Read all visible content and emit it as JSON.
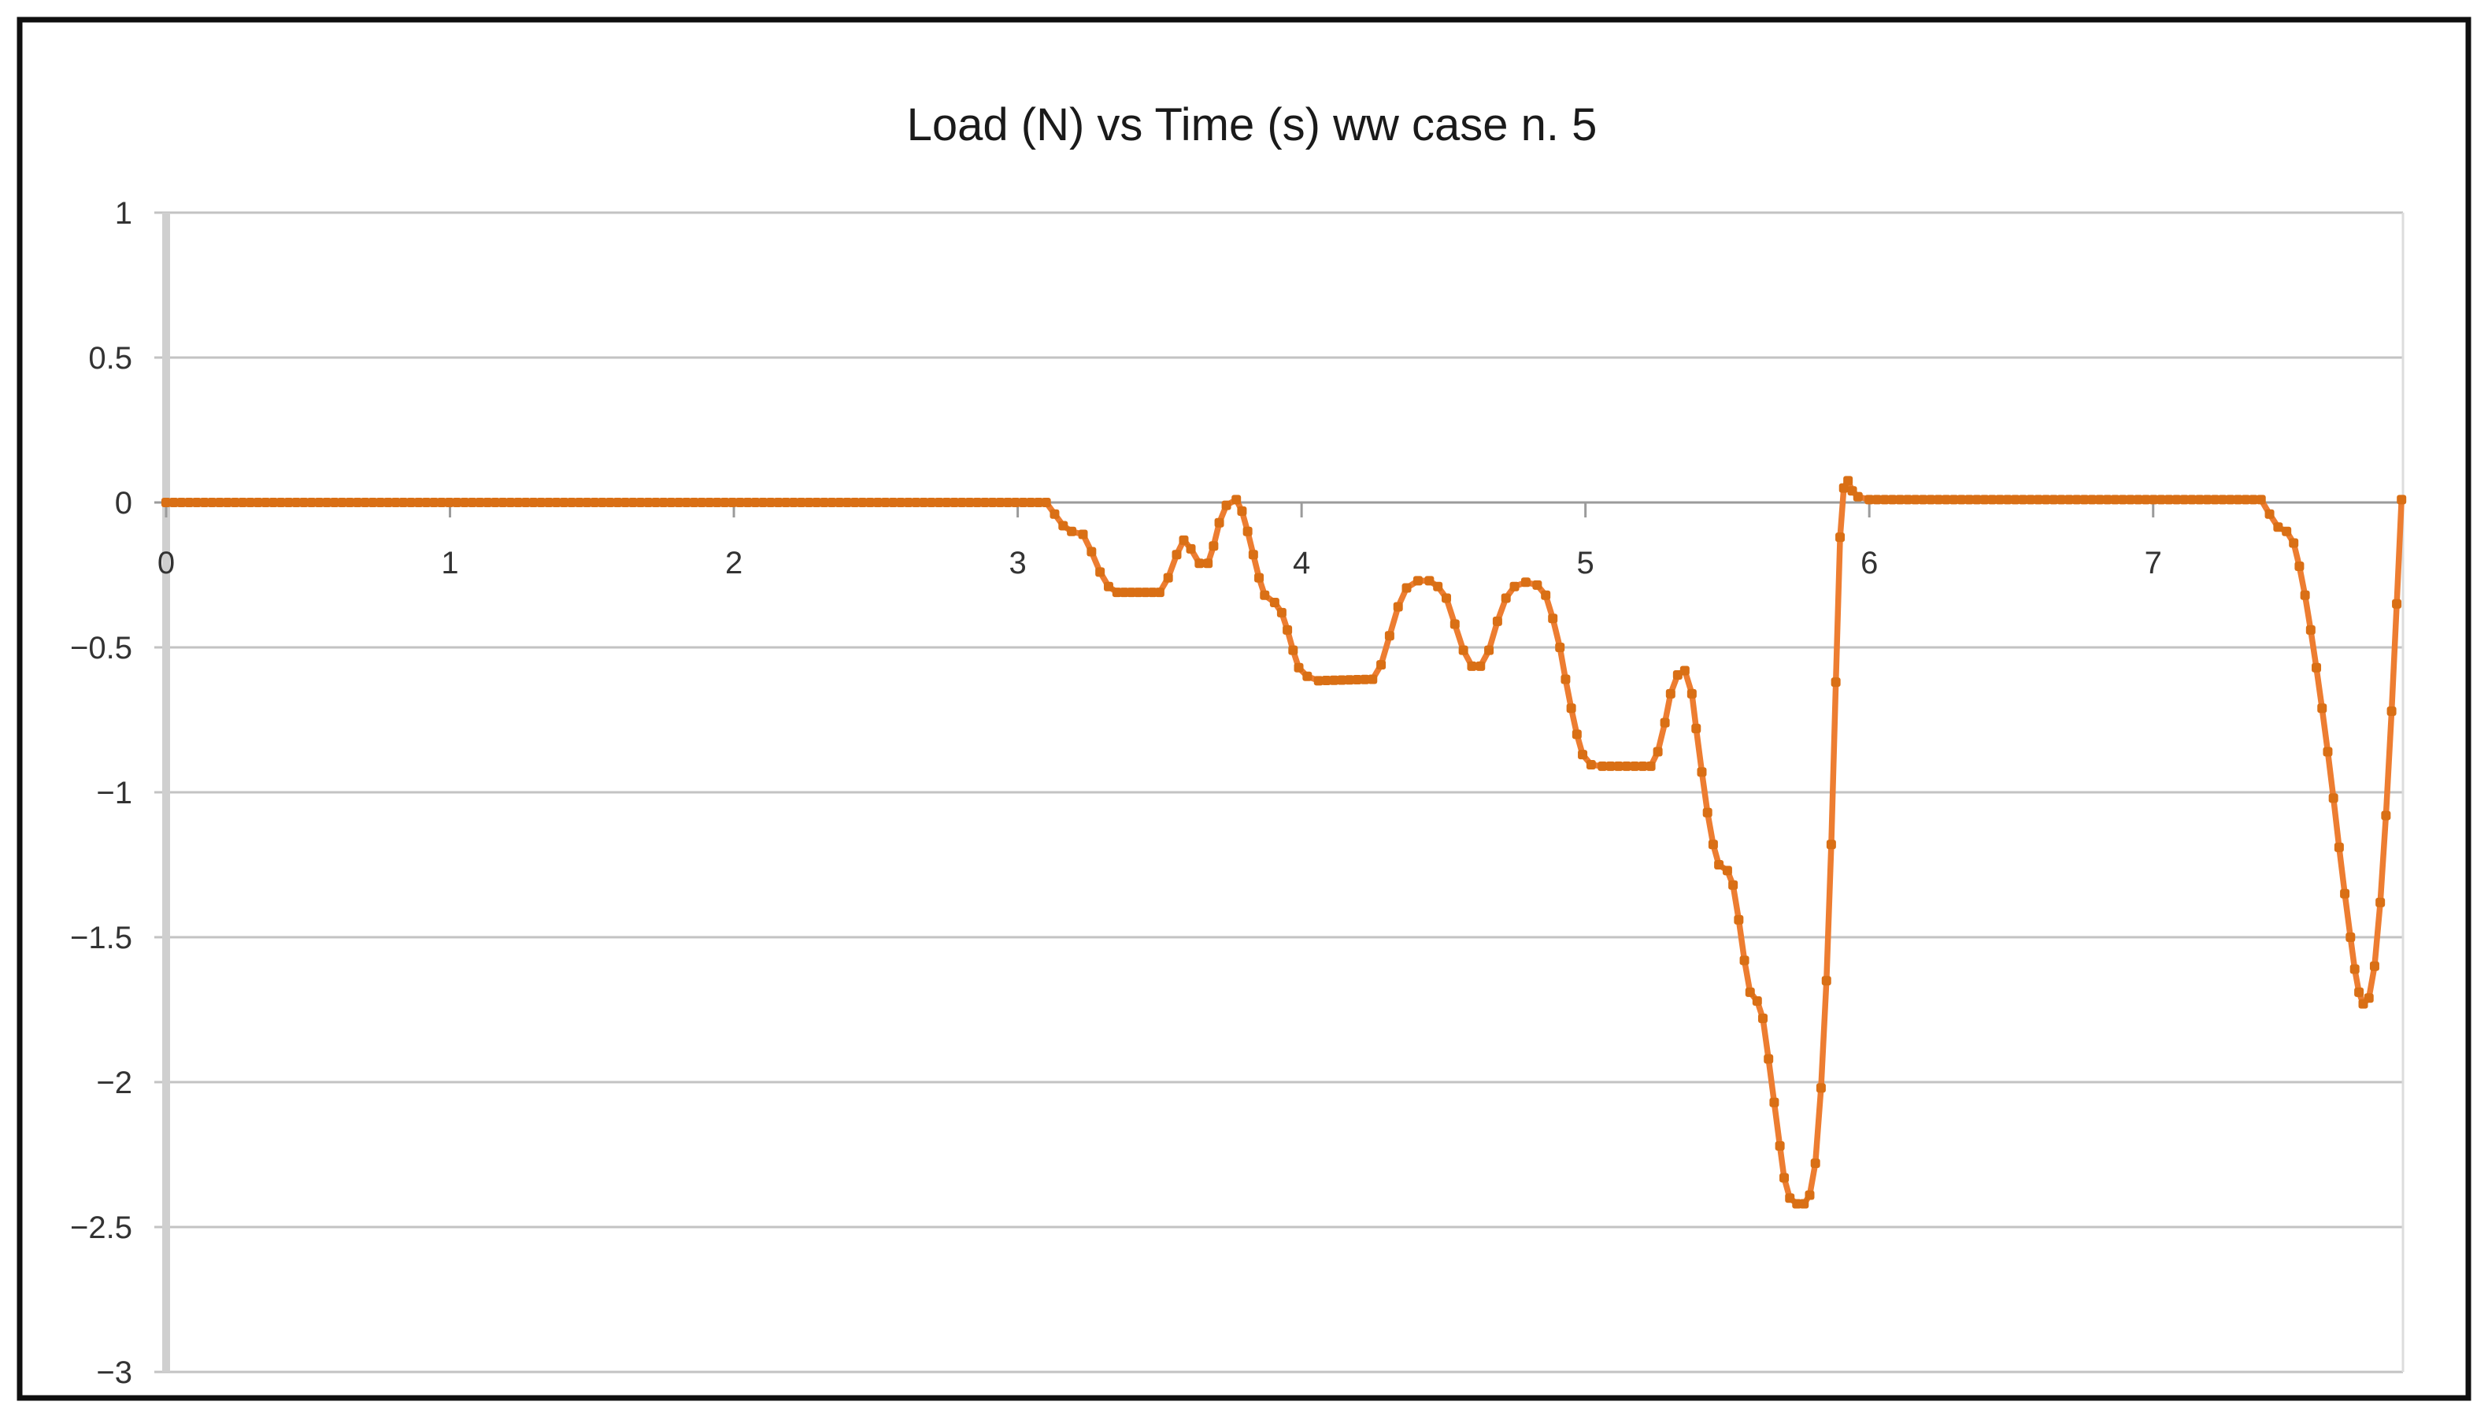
{
  "figure": {
    "title": "Load (N) vs Time (s) ww case n. 5"
  },
  "colors": {
    "line": "#ED7D31",
    "marker": "#D96F15",
    "gridline": "#c3c3c3",
    "zero_line": "#9b9b9b",
    "axis_band": "#cfcfcf",
    "plot_right_edge": "#dcdcdc",
    "tick_text": "#333333",
    "title_text": "#1a1a1a",
    "frame": "#0f0f0f"
  },
  "chart_data": {
    "type": "line",
    "title": "Load (N) vs Time (s) ww case n. 5",
    "xlabel": "",
    "ylabel": "",
    "legend": "none",
    "grid": "horizontal",
    "x_axis": {
      "min": 0,
      "max": 7.88,
      "tick_values": [
        0,
        1,
        2,
        3,
        4,
        5,
        6,
        7
      ],
      "tick_labels": [
        "0",
        "1",
        "2",
        "3",
        "4",
        "5",
        "6",
        "7"
      ]
    },
    "y_axis": {
      "min": -3,
      "max": 1,
      "tick_values": [
        1,
        0.5,
        0,
        -0.5,
        -1,
        -1.5,
        -2,
        -2.5,
        -3
      ],
      "tick_labels": [
        "1",
        "0.5",
        "0",
        "−0.5",
        "−1",
        "−1.5",
        "−2",
        "−2.5",
        "−3"
      ]
    },
    "series": [
      {
        "name": "Load (N)",
        "color": "#ED7D31",
        "marker_color": "#D96F15",
        "marker": "square",
        "marker_interval": 0.027,
        "keypoints": [
          [
            0.0,
            0.0
          ],
          [
            3.1,
            0.0
          ],
          [
            3.13,
            -0.04
          ],
          [
            3.16,
            -0.08
          ],
          [
            3.19,
            -0.1
          ],
          [
            3.23,
            -0.11
          ],
          [
            3.26,
            -0.17
          ],
          [
            3.29,
            -0.24
          ],
          [
            3.32,
            -0.29
          ],
          [
            3.35,
            -0.31
          ],
          [
            3.5,
            -0.31
          ],
          [
            3.53,
            -0.26
          ],
          [
            3.56,
            -0.18
          ],
          [
            3.585,
            -0.13
          ],
          [
            3.61,
            -0.16
          ],
          [
            3.64,
            -0.21
          ],
          [
            3.67,
            -0.21
          ],
          [
            3.69,
            -0.15
          ],
          [
            3.71,
            -0.07
          ],
          [
            3.735,
            -0.01
          ],
          [
            3.77,
            0.01
          ],
          [
            3.79,
            -0.03
          ],
          [
            3.81,
            -0.1
          ],
          [
            3.83,
            -0.18
          ],
          [
            3.85,
            -0.26
          ],
          [
            3.87,
            -0.32
          ],
          [
            3.905,
            -0.345
          ],
          [
            3.93,
            -0.38
          ],
          [
            3.95,
            -0.44
          ],
          [
            3.97,
            -0.51
          ],
          [
            3.99,
            -0.57
          ],
          [
            4.02,
            -0.6
          ],
          [
            4.06,
            -0.615
          ],
          [
            4.25,
            -0.61
          ],
          [
            4.28,
            -0.56
          ],
          [
            4.31,
            -0.46
          ],
          [
            4.34,
            -0.36
          ],
          [
            4.37,
            -0.295
          ],
          [
            4.41,
            -0.27
          ],
          [
            4.45,
            -0.27
          ],
          [
            4.48,
            -0.29
          ],
          [
            4.51,
            -0.33
          ],
          [
            4.54,
            -0.42
          ],
          [
            4.57,
            -0.51
          ],
          [
            4.6,
            -0.565
          ],
          [
            4.63,
            -0.565
          ],
          [
            4.66,
            -0.51
          ],
          [
            4.69,
            -0.41
          ],
          [
            4.72,
            -0.33
          ],
          [
            4.75,
            -0.29
          ],
          [
            4.79,
            -0.275
          ],
          [
            4.83,
            -0.285
          ],
          [
            4.86,
            -0.32
          ],
          [
            4.885,
            -0.4
          ],
          [
            4.91,
            -0.5
          ],
          [
            4.93,
            -0.61
          ],
          [
            4.95,
            -0.71
          ],
          [
            4.97,
            -0.8
          ],
          [
            4.99,
            -0.87
          ],
          [
            5.02,
            -0.905
          ],
          [
            5.06,
            -0.91
          ],
          [
            5.23,
            -0.91
          ],
          [
            5.255,
            -0.86
          ],
          [
            5.28,
            -0.76
          ],
          [
            5.3,
            -0.66
          ],
          [
            5.325,
            -0.595
          ],
          [
            5.35,
            -0.58
          ],
          [
            5.375,
            -0.66
          ],
          [
            5.39,
            -0.78
          ],
          [
            5.41,
            -0.93
          ],
          [
            5.43,
            -1.07
          ],
          [
            5.45,
            -1.18
          ],
          [
            5.47,
            -1.25
          ],
          [
            5.5,
            -1.27
          ],
          [
            5.52,
            -1.32
          ],
          [
            5.54,
            -1.44
          ],
          [
            5.56,
            -1.58
          ],
          [
            5.58,
            -1.69
          ],
          [
            5.605,
            -1.72
          ],
          [
            5.625,
            -1.78
          ],
          [
            5.645,
            -1.92
          ],
          [
            5.665,
            -2.07
          ],
          [
            5.685,
            -2.22
          ],
          [
            5.7,
            -2.33
          ],
          [
            5.72,
            -2.4
          ],
          [
            5.745,
            -2.42
          ],
          [
            5.77,
            -2.42
          ],
          [
            5.79,
            -2.39
          ],
          [
            5.81,
            -2.28
          ],
          [
            5.83,
            -2.02
          ],
          [
            5.849,
            -1.65
          ],
          [
            5.866,
            -1.18
          ],
          [
            5.882,
            -0.62
          ],
          [
            5.897,
            -0.12
          ],
          [
            5.91,
            0.05
          ],
          [
            5.925,
            0.075
          ],
          [
            5.94,
            0.04
          ],
          [
            5.96,
            0.02
          ],
          [
            6.0,
            0.01
          ],
          [
            7.38,
            0.01
          ],
          [
            7.41,
            -0.04
          ],
          [
            7.44,
            -0.085
          ],
          [
            7.47,
            -0.1
          ],
          [
            7.495,
            -0.14
          ],
          [
            7.515,
            -0.22
          ],
          [
            7.535,
            -0.32
          ],
          [
            7.555,
            -0.44
          ],
          [
            7.575,
            -0.57
          ],
          [
            7.595,
            -0.71
          ],
          [
            7.615,
            -0.86
          ],
          [
            7.635,
            -1.02
          ],
          [
            7.655,
            -1.19
          ],
          [
            7.675,
            -1.35
          ],
          [
            7.695,
            -1.5
          ],
          [
            7.71,
            -1.61
          ],
          [
            7.725,
            -1.69
          ],
          [
            7.74,
            -1.73
          ],
          [
            7.76,
            -1.71
          ],
          [
            7.78,
            -1.6
          ],
          [
            7.8,
            -1.38
          ],
          [
            7.82,
            -1.08
          ],
          [
            7.84,
            -0.72
          ],
          [
            7.858,
            -0.35
          ],
          [
            7.875,
            0.01
          ]
        ]
      }
    ]
  }
}
